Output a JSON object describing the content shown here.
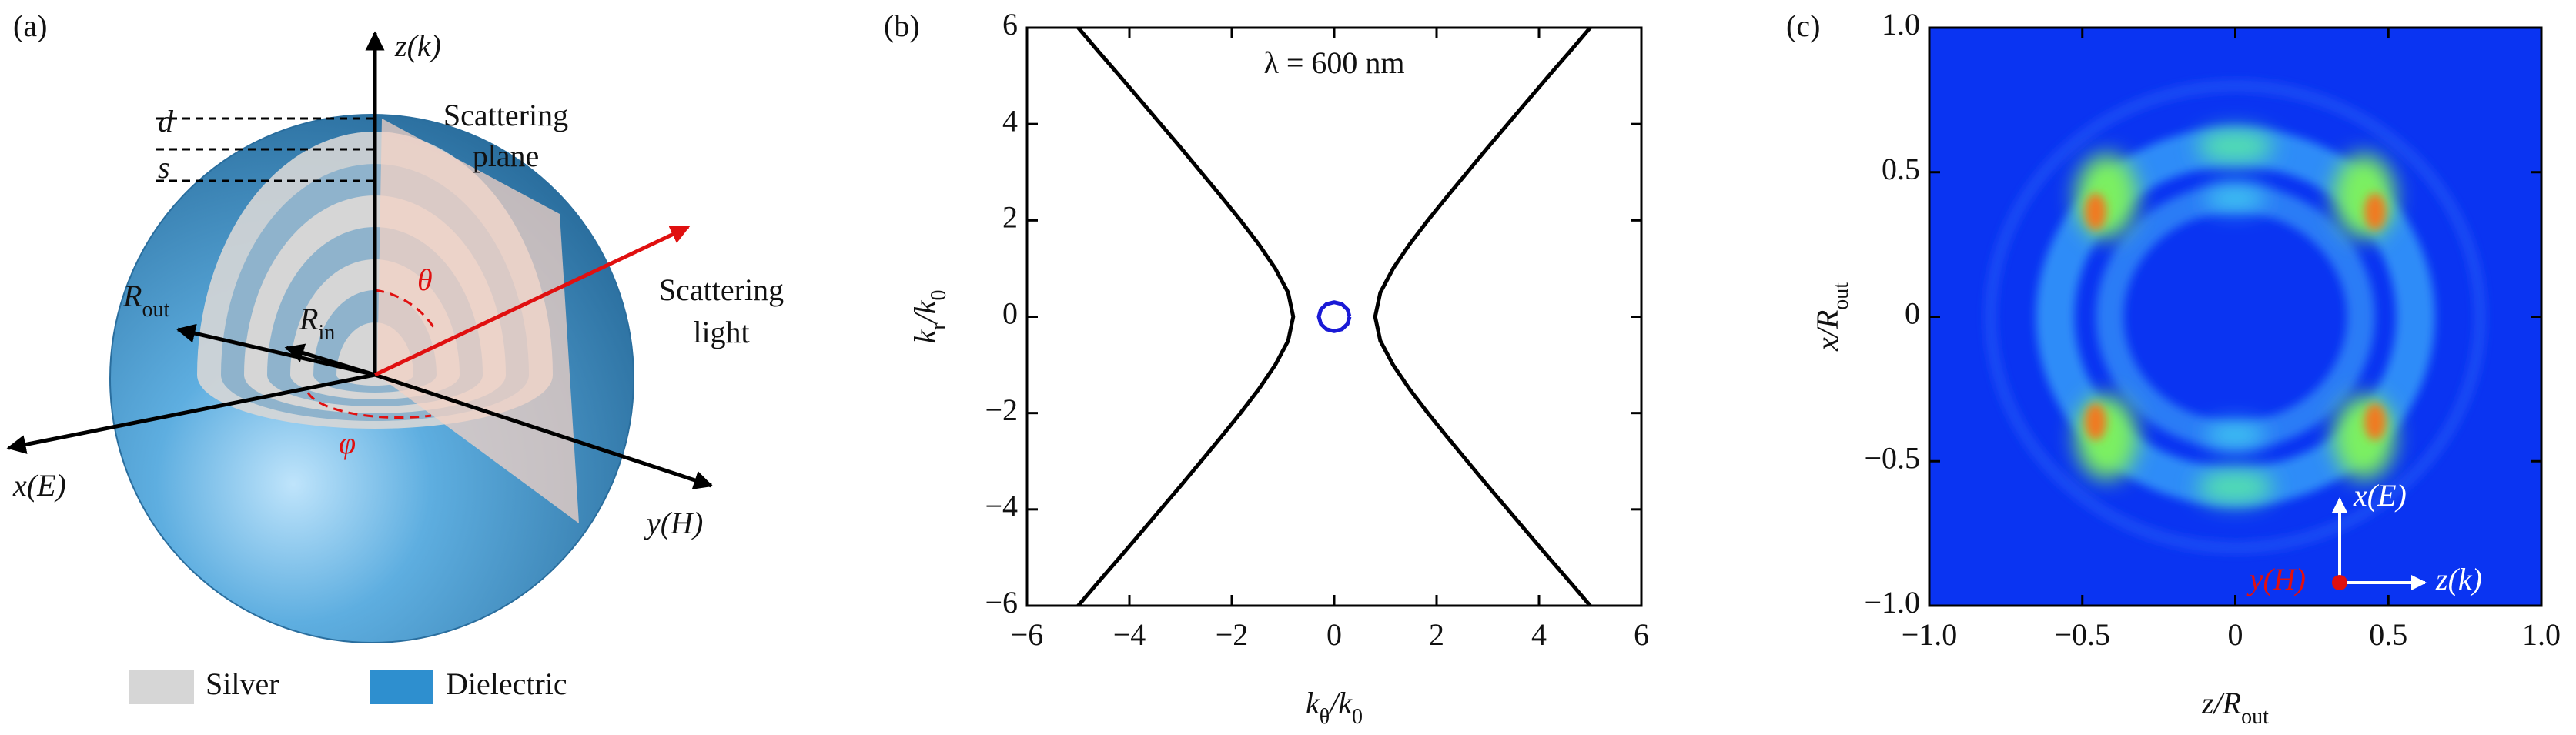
{
  "panel_a": {
    "label": "(a)",
    "z_axis": "z(k)",
    "d": "d",
    "s": "s",
    "scattering_plane": [
      "Scattering",
      "plane"
    ],
    "scattering_light": [
      "Scattering",
      "light"
    ],
    "theta": "θ",
    "r_out": [
      "R",
      "out"
    ],
    "r_in": [
      "R",
      "in"
    ],
    "phi": "φ",
    "x_axis": "x(E)",
    "y_axis": "y(H)",
    "legend": [
      "Silver",
      "Dielectric"
    ]
  },
  "chart_data": [
    {
      "type": "line",
      "panel_label": "(b)",
      "annotation": "λ = 600 nm",
      "x_label": [
        "k",
        "θ",
        "/k",
        "0"
      ],
      "y_label": [
        "k",
        "r",
        "/k",
        "0"
      ],
      "xlim": [
        -6,
        6
      ],
      "ylim": [
        -6,
        6
      ],
      "xticks": [
        {
          "value": -6,
          "label": "−6"
        },
        {
          "value": -4,
          "label": "−4"
        },
        {
          "value": -2,
          "label": "−2"
        },
        0,
        2,
        4,
        6
      ],
      "yticks": [
        {
          "value": -6,
          "label": "−6"
        },
        {
          "value": -4,
          "label": "−4"
        },
        {
          "value": -2,
          "label": "−2"
        },
        0,
        2,
        4,
        6
      ],
      "series": [
        {
          "color": "#000000",
          "x": [
            5.0,
            4.6,
            4.19,
            3.79,
            3.39,
            2.99,
            2.6,
            2.21,
            1.83,
            1.47,
            1.15,
            0.9,
            0.8,
            0.9,
            1.15,
            1.47,
            1.83,
            2.21,
            2.6,
            2.99,
            3.39,
            3.79,
            4.19,
            4.6,
            5.0
          ],
          "y": [
            -6,
            -5.5,
            -5,
            -4.5,
            -4,
            -3.5,
            -3,
            -2.5,
            -2,
            -1.5,
            -1,
            -0.5,
            0,
            0.5,
            1,
            1.5,
            2,
            2.5,
            3,
            3.5,
            4,
            4.5,
            5,
            5.5,
            6
          ]
        },
        {
          "color": "#000000",
          "x": [
            -5.0,
            -4.6,
            -4.19,
            -3.79,
            -3.39,
            -2.99,
            -2.6,
            -2.21,
            -1.83,
            -1.47,
            -1.15,
            -0.9,
            -0.8,
            -0.9,
            -1.15,
            -1.47,
            -1.83,
            -2.21,
            -2.6,
            -2.99,
            -3.39,
            -3.79,
            -4.19,
            -4.6,
            -5.0
          ],
          "y": [
            -6,
            -5.5,
            -5,
            -4.5,
            -4,
            -3.5,
            -3,
            -2.5,
            -2,
            -1.5,
            -1,
            -0.5,
            0,
            0.5,
            1,
            1.5,
            2,
            2.5,
            3,
            3.5,
            4,
            4.5,
            5,
            5.5,
            6
          ]
        },
        {
          "color": "#1a1ad6",
          "x": [
            0.3,
            0.26,
            0.15,
            0,
            -0.15,
            -0.26,
            -0.3,
            -0.26,
            -0.15,
            0,
            0.15,
            0.26,
            0.3
          ],
          "y": [
            0,
            0.15,
            0.26,
            0.3,
            0.26,
            0.15,
            0,
            -0.15,
            -0.26,
            -0.3,
            -0.26,
            -0.15,
            0
          ]
        }
      ]
    },
    {
      "type": "heatmap",
      "panel_label": "(c)",
      "x_label": [
        "z/R",
        "out"
      ],
      "y_label": [
        "x/R",
        "out"
      ],
      "xlim": [
        -1,
        1
      ],
      "ylim": [
        -1,
        1
      ],
      "xticks": [
        {
          "value": -1,
          "label": "−1.0"
        },
        {
          "value": -0.5,
          "label": "−0.5"
        },
        0,
        0.5,
        {
          "value": 1,
          "label": "1.0"
        }
      ],
      "yticks": [
        {
          "value": -1,
          "label": "−1.0"
        },
        {
          "value": -0.5,
          "label": "−0.5"
        },
        0,
        0.5,
        {
          "value": 1,
          "label": "1.0"
        }
      ],
      "annotations": [
        "x(E)",
        "y(H)",
        "z(k)"
      ]
    }
  ]
}
